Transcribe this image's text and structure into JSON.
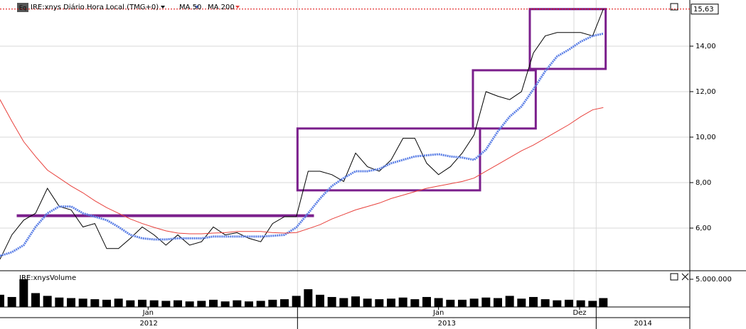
{
  "chart_data": [
    {
      "type": "line",
      "badge": "Eq",
      "x": [
        0,
        10,
        20,
        30,
        40,
        50,
        60,
        70,
        80,
        90,
        100,
        110,
        120,
        130,
        140,
        150,
        160,
        170,
        180,
        190,
        200,
        210,
        220,
        230,
        240,
        250,
        260,
        270,
        280,
        290,
        300,
        310,
        320,
        330,
        340,
        350,
        360,
        370,
        380,
        390,
        400,
        410,
        420,
        430,
        440,
        450,
        460,
        470,
        480,
        490,
        500,
        509
      ],
      "series": [
        {
          "name": "IRE:xnys Diário Hora Local (TMG+0)",
          "color": "#000000",
          "values": [
            4.63,
            5.7,
            6.35,
            6.65,
            7.75,
            6.95,
            6.8,
            6.05,
            6.2,
            5.1,
            5.1,
            5.55,
            6.05,
            5.7,
            5.25,
            5.7,
            5.25,
            5.4,
            6.05,
            5.7,
            5.8,
            5.55,
            5.4,
            6.2,
            6.5,
            6.5,
            8.5,
            8.5,
            8.35,
            8.05,
            9.3,
            8.7,
            8.5,
            9.0,
            9.95,
            9.95,
            8.85,
            8.35,
            8.7,
            9.3,
            10.1,
            12.0,
            11.8,
            11.65,
            12.0,
            13.7,
            14.45,
            14.6,
            14.6,
            14.6,
            14.45,
            15.63
          ]
        },
        {
          "name": "MA 50",
          "color": "#5b7fe6",
          "values": [
            4.78,
            4.94,
            5.25,
            6.05,
            6.65,
            6.95,
            6.95,
            6.65,
            6.5,
            6.35,
            6.05,
            5.7,
            5.55,
            5.5,
            5.5,
            5.55,
            5.55,
            5.55,
            5.63,
            5.63,
            5.63,
            5.63,
            5.63,
            5.66,
            5.7,
            6.03,
            6.65,
            7.3,
            7.85,
            8.2,
            8.5,
            8.5,
            8.6,
            8.85,
            9.0,
            9.15,
            9.2,
            9.25,
            9.15,
            9.1,
            9.0,
            9.45,
            10.25,
            10.9,
            11.35,
            12.1,
            12.9,
            13.55,
            13.85,
            14.2,
            14.45,
            14.55
          ]
        },
        {
          "name": "MA 200",
          "color": "#e8413c",
          "values": [
            11.65,
            10.7,
            9.8,
            9.15,
            8.55,
            8.2,
            7.85,
            7.55,
            7.2,
            6.9,
            6.65,
            6.4,
            6.2,
            6.03,
            5.88,
            5.78,
            5.75,
            5.75,
            5.78,
            5.8,
            5.85,
            5.85,
            5.85,
            5.8,
            5.78,
            5.8,
            5.97,
            6.15,
            6.4,
            6.6,
            6.8,
            6.95,
            7.1,
            7.3,
            7.45,
            7.6,
            7.75,
            7.85,
            7.95,
            8.05,
            8.2,
            8.5,
            8.8,
            9.1,
            9.4,
            9.65,
            9.95,
            10.25,
            10.55,
            10.9,
            11.2,
            11.3
          ]
        }
      ],
      "last_price": 15.63,
      "last_price_label": "15,63",
      "boxes": [
        {
          "x": [
            15,
            264
          ],
          "y": [
            6.56,
            6.56
          ]
        },
        {
          "x": [
            251,
            405
          ],
          "y": [
            7.66,
            10.38
          ]
        },
        {
          "x": [
            399,
            452
          ],
          "y": [
            10.38,
            12.94
          ]
        },
        {
          "x": [
            447,
            511
          ],
          "y": [
            13.0,
            15.63
          ]
        }
      ],
      "box_color": "#7b1f8c",
      "xlim": [
        0,
        582
      ],
      "ylim": [
        4.156,
        16.03
      ],
      "yticks": [
        {
          "value": 6,
          "label": "6,00"
        },
        {
          "value": 8,
          "label": "8,00"
        },
        {
          "value": 10,
          "label": "10,00"
        },
        {
          "value": 12,
          "label": "12,00"
        },
        {
          "value": 14,
          "label": "14,00"
        }
      ],
      "xticks": [
        {
          "value": 125,
          "label": "Jan"
        },
        {
          "value": 370,
          "label": "Jan"
        },
        {
          "value": 489,
          "label": "Dez"
        }
      ],
      "years": [
        {
          "label": "2012",
          "start": 0,
          "end": 251
        },
        {
          "label": "2013",
          "start": 251,
          "end": 503
        },
        {
          "label": "2014",
          "start": 503,
          "end": 582
        }
      ],
      "grid": true
    },
    {
      "type": "bar",
      "title": "IRE:xnysVolume",
      "color": "#000000",
      "values": [
        2200000,
        1800000,
        5000000,
        2500000,
        2000000,
        1700000,
        1600000,
        1500000,
        1400000,
        1300000,
        1500000,
        1200000,
        1300000,
        1200000,
        1100000,
        1200000,
        1000000,
        1100000,
        1300000,
        1000000,
        1200000,
        1000000,
        1100000,
        1300000,
        1400000,
        2000000,
        3200000,
        2200000,
        1800000,
        1600000,
        1900000,
        1500000,
        1400000,
        1500000,
        1700000,
        1400000,
        1800000,
        1600000,
        1300000,
        1300000,
        1500000,
        1700000,
        1600000,
        2000000,
        1500000,
        1800000,
        1400000,
        1200000,
        1300000,
        1200000,
        1100000,
        1600000
      ],
      "ylim": [
        0,
        6280000
      ],
      "yticks": [
        {
          "value": 5000000,
          "label": "5.000.000"
        }
      ]
    }
  ]
}
